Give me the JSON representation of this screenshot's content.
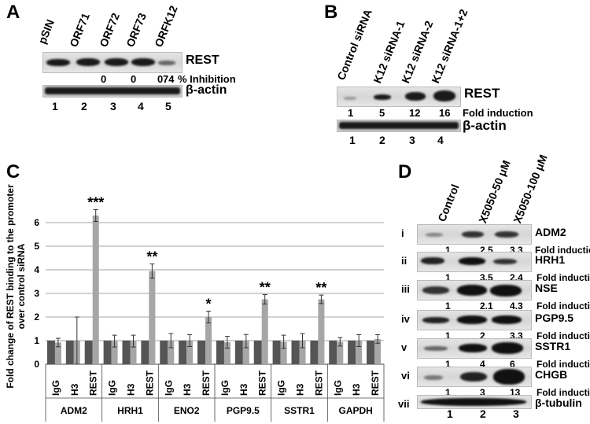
{
  "panelA": {
    "label": "A",
    "lanes": [
      "pSIN",
      "ORF71",
      "ORF72",
      "ORF73",
      "ORFK12"
    ],
    "protein": "REST",
    "inhibition": [
      "0",
      "0",
      "0",
      "74"
    ],
    "inhibition_unit": "% Inhibition",
    "loading": "β-actin",
    "numbers": [
      "1",
      "2",
      "3",
      "4",
      "5"
    ]
  },
  "panelB": {
    "label": "B",
    "lanes": [
      "Control siRNA",
      "K12 siRNA-1",
      "K12 siRNA-2",
      "K12 siRNA-1+2"
    ],
    "protein": "REST",
    "fold": [
      "1",
      "5",
      "12",
      "16"
    ],
    "fold_label": "Fold induction",
    "loading": "β-actin",
    "numbers": [
      "1",
      "2",
      "3",
      "4"
    ]
  },
  "panelC": {
    "label": "C"
  },
  "chart_data": {
    "type": "bar",
    "ylabel": "Fold change of REST binding to the promoter over control siRNA",
    "ylim": [
      0,
      7
    ],
    "yticks": [
      "0",
      "1",
      "2",
      "3",
      "4",
      "5",
      "6"
    ],
    "groups": [
      "ADM2",
      "HRH1",
      "ENO2",
      "PGP9.5",
      "SSTR1",
      "GAPDH"
    ],
    "categories": [
      "IgG",
      "H3",
      "REST"
    ],
    "series": [
      {
        "values": [
          0.92,
          1.0,
          6.3
        ],
        "errors": [
          0.18,
          1.0,
          0.25
        ]
      },
      {
        "values": [
          0.98,
          0.98,
          3.95
        ],
        "errors": [
          0.25,
          0.25,
          0.3
        ]
      },
      {
        "values": [
          1.0,
          1.0,
          2.0
        ],
        "errors": [
          0.3,
          0.25,
          0.25
        ]
      },
      {
        "values": [
          0.93,
          0.98,
          2.75
        ],
        "errors": [
          0.25,
          0.28,
          0.2
        ]
      },
      {
        "values": [
          0.95,
          1.0,
          2.75
        ],
        "errors": [
          0.28,
          0.3,
          0.18
        ]
      },
      {
        "values": [
          0.95,
          1.0,
          1.07
        ],
        "errors": [
          0.18,
          0.25,
          0.18
        ]
      }
    ],
    "significance": [
      "***",
      "**",
      "*",
      "**",
      "**",
      ""
    ],
    "colors": {
      "pair": "#555555",
      "bar": "#a6a6a6"
    }
  },
  "panelD": {
    "label": "D",
    "lanes": [
      "Control",
      "X5050-50 μM",
      "X5050-100 μM"
    ],
    "rows": [
      {
        "roman": "i",
        "protein": "ADM2",
        "values": [
          "1",
          "2.5",
          "3.3"
        ],
        "note": "Fold induction"
      },
      {
        "roman": "ii",
        "protein": "HRH1",
        "values": [
          "1",
          "3.5",
          "2.4"
        ],
        "note": "Fold induction"
      },
      {
        "roman": "iii",
        "protein": "NSE",
        "values": [
          "1",
          "2.1",
          "4.3"
        ],
        "note": "Fold induction"
      },
      {
        "roman": "iv",
        "protein": "PGP9.5",
        "values": [
          "1",
          "2",
          "3.3"
        ],
        "note": "Fold induction"
      },
      {
        "roman": "v",
        "protein": "SSTR1",
        "values": [
          "1",
          "4",
          "6"
        ],
        "note": "Fold induction"
      },
      {
        "roman": "vi",
        "protein": "CHGB",
        "values": [
          "1",
          "3",
          "13"
        ],
        "note": "Fold induction"
      },
      {
        "roman": "vii",
        "protein": "β-tubulin",
        "values": [],
        "note": ""
      }
    ],
    "numbers": [
      "1",
      "2",
      "3"
    ]
  }
}
